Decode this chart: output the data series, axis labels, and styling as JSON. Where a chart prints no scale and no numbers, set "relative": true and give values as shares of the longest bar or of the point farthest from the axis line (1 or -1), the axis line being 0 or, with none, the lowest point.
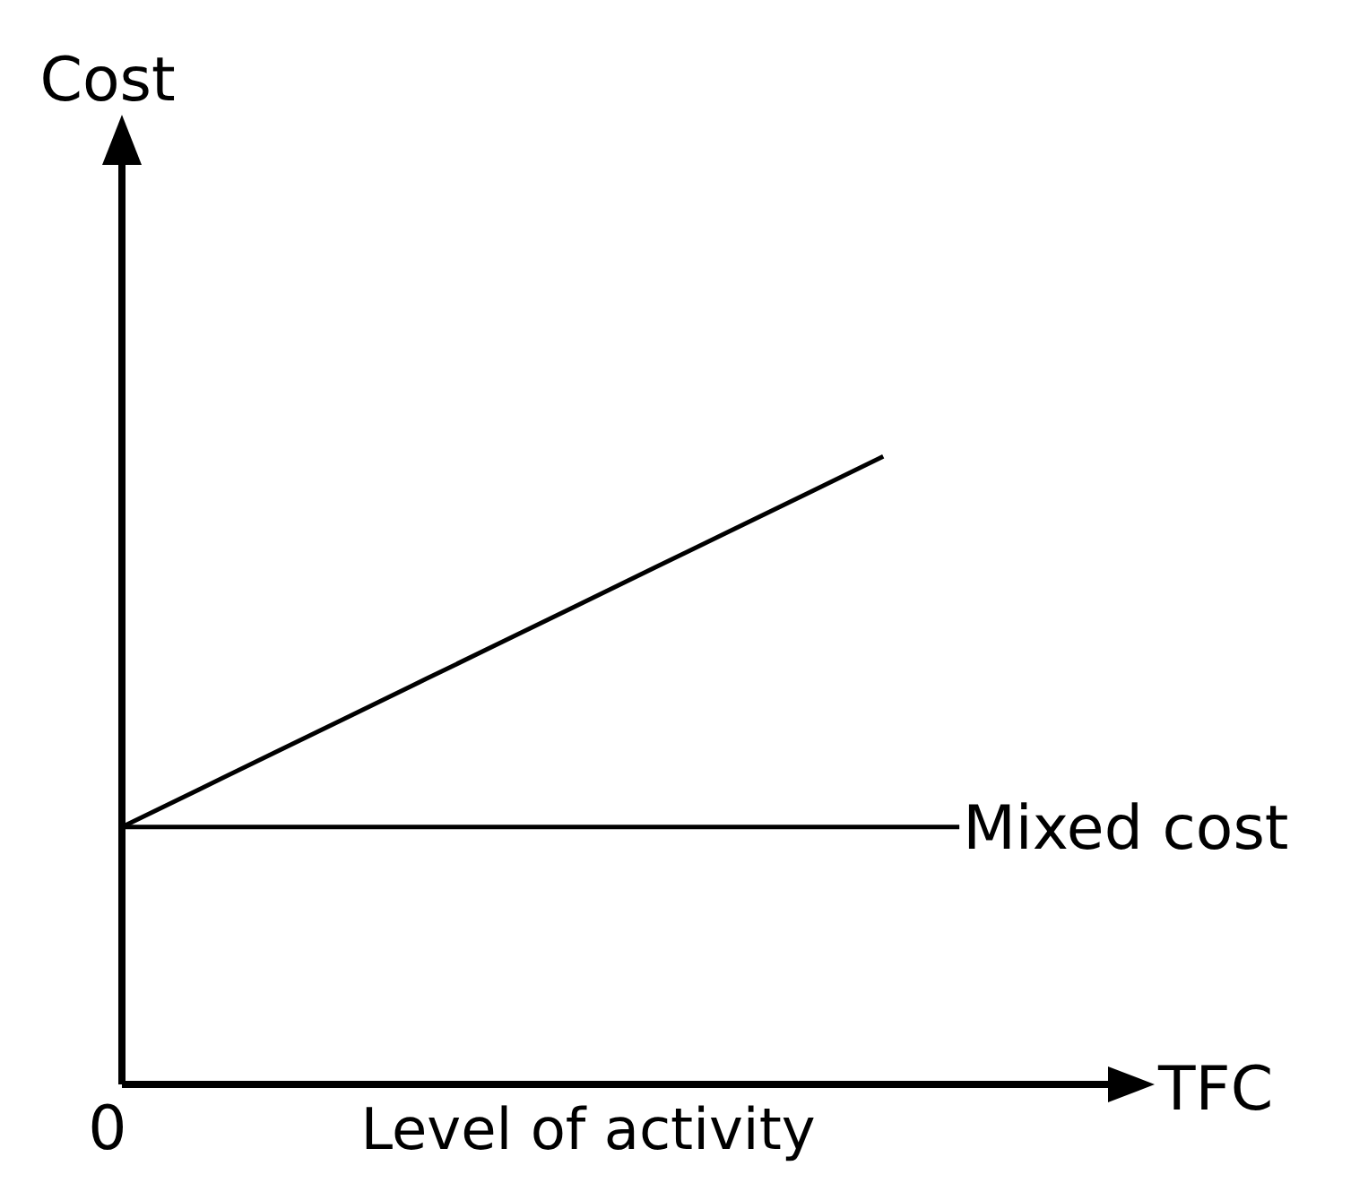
{
  "chart_data": {
    "type": "line",
    "xlabel": "Level of activity",
    "relative": true,
    "categories": [
      null,
      null,
      null,
      null,
      null,
      null,
      null,
      null,
      null,
      null,
      null,
      null,
      null,
      null
    ],
    "series": [
      {
        "color": "#000000",
        "values": [
          0.41,
          0.469,
          0.528,
          0.587,
          0.646,
          0.705,
          0.764,
          0.823,
          0.882,
          0.941,
          1,
          null,
          null,
          null
        ]
      },
      {
        "name": "Mixed cost",
        "color": "#000000",
        "values": [
          0.41,
          0.41,
          0.41,
          0.41,
          0.41,
          0.41,
          0.41,
          0.41,
          0.41,
          0.41,
          0.41,
          0.41,
          null,
          null
        ]
      }
    ],
    "annotations": [
      "Cost",
      "0",
      "TFC"
    ],
    "legend": false,
    "grid": false,
    "marker": "none",
    "line_style": "solid"
  }
}
